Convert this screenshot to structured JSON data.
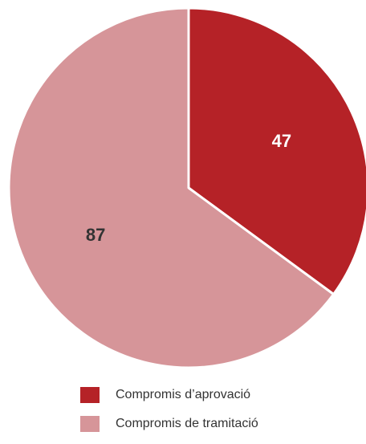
{
  "chart_data": {
    "type": "pie",
    "categories": [
      "Compromis d’aprovació",
      "Compromis de tramitació"
    ],
    "values": [
      47,
      87
    ],
    "colors": [
      "#b52227",
      "#d69599"
    ],
    "label_colors": [
      "#ffffff",
      "#333333"
    ],
    "start_angle_deg": 0,
    "direction": "clockwise",
    "legend_position": "bottom"
  }
}
